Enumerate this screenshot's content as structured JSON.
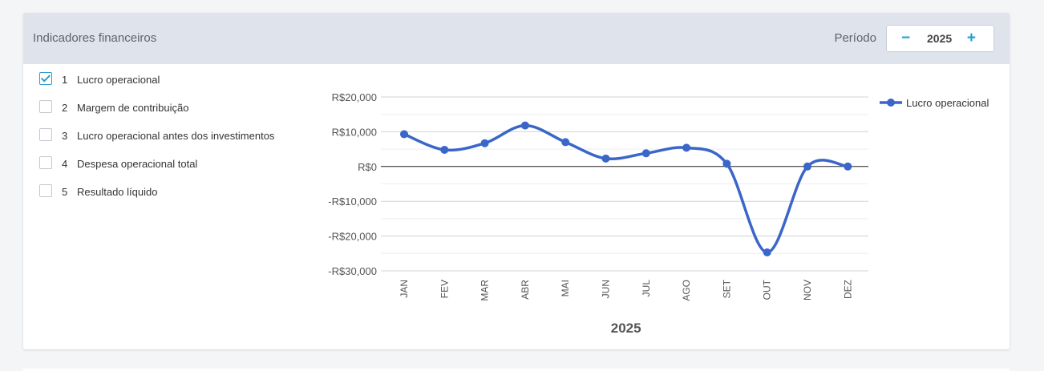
{
  "header": {
    "title": "Indicadores financeiros",
    "period_label": "Período",
    "period_minus": "−",
    "period_year": "2025",
    "period_plus": "+"
  },
  "indicators": [
    {
      "num": "1",
      "label": "Lucro operacional",
      "checked": true
    },
    {
      "num": "2",
      "label": "Margem de contribuição",
      "checked": false
    },
    {
      "num": "3",
      "label": "Lucro operacional antes dos investimentos",
      "checked": false
    },
    {
      "num": "4",
      "label": "Despesa operacional total",
      "checked": false
    },
    {
      "num": "5",
      "label": "Resultado líquido",
      "checked": false
    }
  ],
  "colors": {
    "series": "#3a66c9",
    "accent": "#1b9fd6",
    "header_bg": "#dfe4ec"
  },
  "chart_data": {
    "type": "line",
    "categories": [
      "JAN",
      "FEV",
      "MAR",
      "ABR",
      "MAI",
      "JUN",
      "JUL",
      "AGO",
      "SET",
      "OUT",
      "NOV",
      "DEZ"
    ],
    "series": [
      {
        "name": "Lucro operacional",
        "values": [
          9300,
          4800,
          6700,
          11800,
          7000,
          2300,
          3800,
          5400,
          800,
          -24700,
          0,
          0
        ]
      }
    ],
    "ylim": [
      -30000,
      20000
    ],
    "yticks": [
      20000,
      10000,
      0,
      -10000,
      -20000,
      -30000
    ],
    "ytick_labels": [
      "R$20,000",
      "R$10,000",
      "R$0",
      "-R$10,000",
      "-R$20,000",
      "-R$30,000"
    ],
    "xlabel": "2025",
    "ylabel": "",
    "legend": "top-right",
    "grid": true,
    "smooth": true
  }
}
